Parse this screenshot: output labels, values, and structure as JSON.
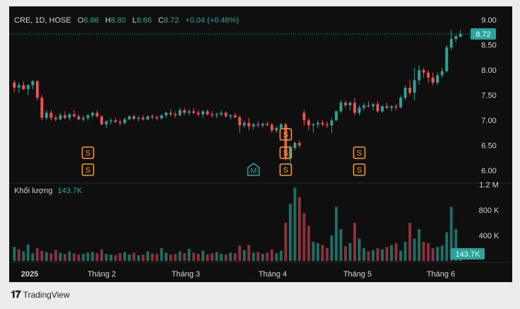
{
  "legend": {
    "symbol": "CRE, 1D, HOSE",
    "o_label": "O",
    "o": "8.66",
    "h_label": "H",
    "h": "8.80",
    "l_label": "L",
    "l": "8.66",
    "c_label": "C",
    "c": "8.72",
    "change": "+0.04 (+0.46%)"
  },
  "volume_legend": {
    "label": "Khối lượng",
    "value": "143.7K"
  },
  "price_axis": {
    "ticks": [
      "9.00",
      "8.50",
      "8.00",
      "7.50",
      "7.00",
      "6.50",
      "6.00"
    ],
    "last_price": "8.72"
  },
  "volume_axis": {
    "ticks": [
      "1.2 M",
      "800 K",
      "400 K"
    ],
    "last_volume": "143.7K"
  },
  "time_axis": {
    "labels": [
      "2025",
      "Tháng 2",
      "Tháng 3",
      "Tháng 4",
      "Tháng 5",
      "Tháng 6"
    ]
  },
  "markers": [
    {
      "label": "S",
      "color": "#f59f00"
    },
    {
      "label": "M",
      "color": "#26a69a"
    }
  ],
  "branding": {
    "logo_text": "TradingView"
  },
  "colors": {
    "up": "#26a69a",
    "down": "#ef5350",
    "volume_up": "#1f6e63",
    "volume_down": "#8e3139",
    "background": "#0f0f0f"
  },
  "chart_data": {
    "type": "candlestick",
    "ylim": [
      5.75,
      9.1
    ],
    "volume_ylim": [
      0,
      1200000
    ],
    "candles": [
      [
        7.75,
        7.8,
        7.55,
        7.65
      ],
      [
        7.65,
        7.75,
        7.55,
        7.7
      ],
      [
        7.7,
        7.78,
        7.6,
        7.62
      ],
      [
        7.62,
        7.72,
        7.5,
        7.7
      ],
      [
        7.7,
        7.8,
        7.62,
        7.78
      ],
      [
        7.78,
        7.8,
        7.4,
        7.45
      ],
      [
        7.45,
        7.5,
        7.0,
        7.05
      ],
      [
        7.05,
        7.2,
        7.0,
        7.15
      ],
      [
        7.15,
        7.2,
        7.0,
        7.05
      ],
      [
        7.05,
        7.1,
        6.98,
        7.02
      ],
      [
        7.02,
        7.15,
        7.0,
        7.1
      ],
      [
        7.1,
        7.18,
        7.02,
        7.05
      ],
      [
        7.05,
        7.15,
        7.0,
        7.12
      ],
      [
        7.12,
        7.2,
        7.05,
        7.08
      ],
      [
        7.08,
        7.12,
        7.0,
        7.02
      ],
      [
        7.02,
        7.1,
        6.98,
        7.05
      ],
      [
        7.05,
        7.12,
        7.0,
        7.1
      ],
      [
        7.1,
        7.18,
        7.05,
        7.15
      ],
      [
        7.15,
        7.2,
        7.05,
        7.08
      ],
      [
        7.08,
        7.1,
        6.9,
        6.92
      ],
      [
        6.92,
        7.0,
        6.85,
        6.98
      ],
      [
        6.98,
        7.05,
        6.92,
        7.0
      ],
      [
        7.0,
        7.05,
        6.95,
        6.97
      ],
      [
        6.97,
        7.02,
        6.9,
        6.95
      ],
      [
        6.95,
        7.05,
        6.92,
        7.02
      ],
      [
        7.02,
        7.1,
        7.0,
        7.08
      ],
      [
        7.08,
        7.12,
        7.0,
        7.03
      ],
      [
        7.03,
        7.08,
        6.98,
        7.05
      ],
      [
        7.05,
        7.1,
        7.0,
        7.02
      ],
      [
        7.02,
        7.1,
        7.0,
        7.08
      ],
      [
        7.08,
        7.12,
        7.02,
        7.06
      ],
      [
        7.06,
        7.1,
        7.0,
        7.04
      ],
      [
        7.04,
        7.12,
        7.02,
        7.1
      ],
      [
        7.1,
        7.18,
        7.05,
        7.15
      ],
      [
        7.15,
        7.22,
        7.08,
        7.12
      ],
      [
        7.12,
        7.18,
        7.05,
        7.1
      ],
      [
        7.1,
        7.25,
        7.08,
        7.2
      ],
      [
        7.2,
        7.25,
        7.1,
        7.15
      ],
      [
        7.15,
        7.22,
        7.1,
        7.18
      ],
      [
        7.18,
        7.25,
        7.12,
        7.15
      ],
      [
        7.15,
        7.2,
        7.08,
        7.12
      ],
      [
        7.12,
        7.2,
        7.05,
        7.18
      ],
      [
        7.18,
        7.22,
        7.1,
        7.12
      ],
      [
        7.12,
        7.18,
        7.05,
        7.1
      ],
      [
        7.1,
        7.15,
        7.05,
        7.12
      ],
      [
        7.12,
        7.2,
        7.08,
        7.15
      ],
      [
        7.15,
        7.18,
        7.05,
        7.08
      ],
      [
        7.08,
        7.12,
        7.02,
        7.1
      ],
      [
        7.1,
        7.15,
        7.05,
        7.06
      ],
      [
        7.06,
        7.1,
        6.75,
        6.9
      ],
      [
        6.9,
        7.0,
        6.85,
        6.95
      ],
      [
        6.95,
        7.05,
        6.8,
        6.88
      ],
      [
        6.88,
        6.95,
        6.82,
        6.92
      ],
      [
        6.92,
        6.98,
        6.86,
        6.9
      ],
      [
        6.9,
        6.96,
        6.85,
        6.93
      ],
      [
        6.93,
        6.98,
        6.88,
        6.91
      ],
      [
        6.91,
        6.95,
        6.75,
        6.8
      ],
      [
        6.8,
        6.88,
        6.75,
        6.85
      ],
      [
        6.85,
        6.95,
        6.82,
        6.92
      ],
      [
        6.92,
        6.95,
        6.2,
        6.25
      ],
      [
        6.25,
        6.5,
        6.1,
        6.45
      ],
      [
        6.45,
        6.58,
        6.4,
        6.55
      ],
      [
        6.55,
        6.6,
        6.45,
        6.5
      ],
      [
        7.15,
        7.2,
        6.9,
        7.0
      ],
      [
        7.0,
        7.05,
        6.8,
        6.9
      ],
      [
        6.9,
        6.95,
        6.75,
        6.92
      ],
      [
        6.92,
        7.0,
        6.85,
        6.95
      ],
      [
        6.95,
        7.0,
        6.88,
        6.92
      ],
      [
        6.92,
        6.98,
        6.85,
        6.9
      ],
      [
        6.9,
        7.05,
        6.75,
        7.0
      ],
      [
        7.0,
        7.2,
        6.98,
        7.18
      ],
      [
        7.18,
        7.4,
        7.15,
        7.35
      ],
      [
        7.35,
        7.4,
        7.25,
        7.3
      ],
      [
        7.3,
        7.38,
        7.2,
        7.35
      ],
      [
        7.35,
        7.45,
        7.1,
        7.15
      ],
      [
        7.15,
        7.3,
        7.1,
        7.25
      ],
      [
        7.25,
        7.35,
        7.2,
        7.3
      ],
      [
        7.3,
        7.38,
        7.25,
        7.28
      ],
      [
        7.28,
        7.35,
        7.2,
        7.32
      ],
      [
        7.32,
        7.38,
        7.15,
        7.18
      ],
      [
        7.18,
        7.3,
        7.15,
        7.28
      ],
      [
        7.28,
        7.35,
        7.22,
        7.25
      ],
      [
        7.25,
        7.3,
        7.18,
        7.28
      ],
      [
        7.28,
        7.32,
        7.2,
        7.26
      ],
      [
        7.26,
        7.5,
        7.24,
        7.45
      ],
      [
        7.45,
        7.7,
        7.4,
        7.65
      ],
      [
        7.65,
        7.8,
        7.5,
        7.55
      ],
      [
        7.55,
        8.05,
        7.4,
        7.8
      ],
      [
        7.8,
        8.1,
        7.7,
        8.0
      ],
      [
        8.0,
        8.05,
        7.85,
        7.95
      ],
      [
        7.95,
        8.0,
        7.75,
        7.85
      ],
      [
        7.85,
        7.95,
        7.7,
        7.75
      ],
      [
        7.75,
        7.95,
        7.7,
        7.9
      ],
      [
        7.9,
        8.05,
        7.85,
        7.98
      ],
      [
        7.98,
        8.5,
        7.95,
        8.45
      ],
      [
        8.45,
        8.8,
        8.4,
        8.62
      ],
      [
        8.62,
        8.7,
        8.55,
        8.68
      ],
      [
        8.66,
        8.8,
        8.66,
        8.72
      ]
    ],
    "volumes": [
      220000,
      180000,
      150000,
      260000,
      120000,
      200000,
      160000,
      140000,
      120000,
      170000,
      130000,
      110000,
      150000,
      120000,
      100000,
      110000,
      130000,
      140000,
      120000,
      180000,
      110000,
      100000,
      90000,
      120000,
      140000,
      100000,
      130000,
      90000,
      100000,
      150000,
      120000,
      110000,
      200000,
      130000,
      100000,
      110000,
      150000,
      120000,
      190000,
      130000,
      110000,
      160000,
      100000,
      120000,
      140000,
      110000,
      100000,
      130000,
      120000,
      240000,
      170000,
      250000,
      130000,
      140000,
      110000,
      130000,
      180000,
      120000,
      160000,
      600000,
      900000,
      1150000,
      1000000,
      750000,
      550000,
      300000,
      280000,
      250000,
      200000,
      400000,
      850000,
      500000,
      230000,
      280000,
      600000,
      350000,
      200000,
      150000,
      170000,
      200000,
      180000,
      220000,
      250000,
      280000,
      160000,
      300000,
      600000,
      350000,
      500000,
      300000,
      280000,
      200000,
      220000,
      240000,
      450000,
      850000,
      500000,
      143700
    ],
    "vol_up_flags": [
      1,
      0,
      1,
      1,
      1,
      0,
      0,
      1,
      0,
      0,
      1,
      0,
      1,
      0,
      0,
      1,
      1,
      1,
      0,
      0,
      1,
      1,
      0,
      0,
      1,
      1,
      0,
      1,
      0,
      1,
      0,
      0,
      1,
      1,
      0,
      0,
      1,
      0,
      1,
      0,
      0,
      1,
      0,
      0,
      1,
      1,
      0,
      1,
      0,
      0,
      1,
      0,
      1,
      0,
      1,
      0,
      0,
      1,
      1,
      0,
      1,
      1,
      0,
      0,
      0,
      1,
      1,
      0,
      0,
      1,
      1,
      1,
      0,
      1,
      0,
      1,
      1,
      0,
      1,
      0,
      1,
      0,
      1,
      0,
      1,
      1,
      0,
      1,
      1,
      0,
      0,
      0,
      1,
      1,
      1,
      1,
      1,
      1
    ],
    "s_marker_indices": [
      [
        16,
        "S"
      ],
      [
        59,
        "S"
      ],
      [
        75,
        "S"
      ]
    ],
    "m_marker_indices": [
      [
        52,
        "M"
      ]
    ]
  }
}
